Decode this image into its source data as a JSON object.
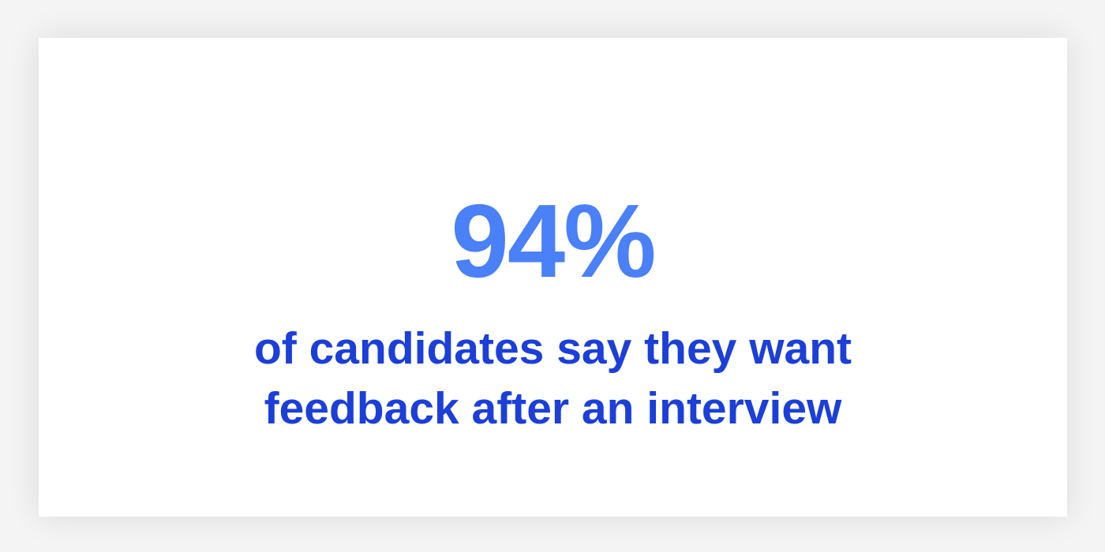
{
  "stat": {
    "value": "94%",
    "caption_lines": [
      "of candidates say they want",
      "feedback after an interview"
    ]
  },
  "colors": {
    "stat": "#4a80f8",
    "caption": "#1b3fd8",
    "card": "#ffffff",
    "background": "#f4f4f4"
  }
}
